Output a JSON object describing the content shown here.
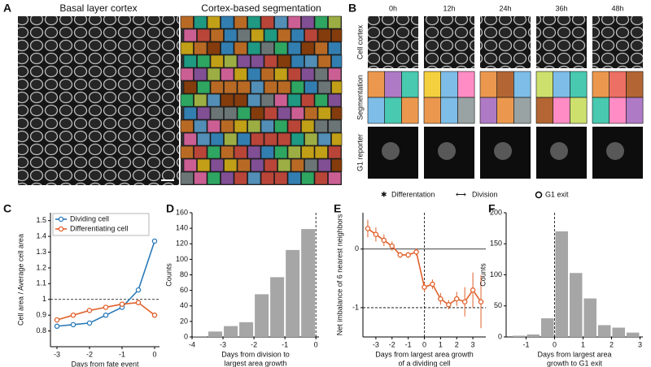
{
  "panel_labels": [
    "A",
    "B",
    "C",
    "D",
    "E",
    "F"
  ],
  "panel_a": {
    "titles": [
      "Basal layer cortex",
      "Cortex-based segmentation"
    ]
  },
  "panel_b": {
    "times": [
      "0h",
      "12h",
      "24h",
      "36h",
      "48h"
    ],
    "rows": [
      "Cell cortex",
      "Segmentation",
      "G1 reporter"
    ],
    "legend": [
      "Differentation",
      "Division",
      "G1 exit"
    ]
  },
  "chart_data": [
    {
      "type": "line",
      "legend": "upper left",
      "x": [
        -3,
        -2.5,
        -2,
        -1.5,
        -1,
        -0.5,
        0
      ],
      "series": [
        {
          "name": "Dividing cell",
          "color": "#2a7ab9",
          "values": [
            0.83,
            0.84,
            0.85,
            0.9,
            0.95,
            1.06,
            1.37
          ]
        },
        {
          "name": "Differentiating cell",
          "color": "#e0602a",
          "values": [
            0.87,
            0.9,
            0.93,
            0.95,
            0.97,
            0.98,
            0.9
          ]
        }
      ],
      "xlim": [
        -3.2,
        0.15
      ],
      "ylim": [
        0.7,
        1.55
      ],
      "xticks": [
        -3,
        -2,
        -1,
        0
      ],
      "yticks": [
        0.8,
        0.9,
        1,
        1.1,
        1.2,
        1.3,
        1.4,
        1.5
      ],
      "reference_lines": [
        {
          "axis": "y",
          "value": 1,
          "style": "dashed"
        }
      ],
      "ylabel": "Cell area / Average cell area",
      "xlabel": [
        "Days from fate event"
      ]
    },
    {
      "type": "histogram",
      "color": "#a6a6a6",
      "bins": [
        -4,
        -3.5,
        -3,
        -2.5,
        -2,
        -1.5,
        -1,
        -0.5,
        0
      ],
      "counts": [
        1,
        7,
        14,
        19,
        55,
        77,
        112,
        139
      ],
      "xlim": [
        -4,
        0.1
      ],
      "ylim": [
        0,
        160
      ],
      "xticks": [
        -4,
        -3,
        -2,
        -1,
        0
      ],
      "yticks": [
        0,
        20,
        40,
        60,
        80,
        100,
        120,
        140,
        160
      ],
      "reference_lines": [
        {
          "axis": "x",
          "value": 0,
          "style": "dashed"
        }
      ],
      "ylabel": "Counts",
      "xlabel": [
        "Days from division to",
        "largest area growth"
      ]
    },
    {
      "type": "line",
      "x": [
        -3.5,
        -3,
        -2.5,
        -2,
        -1.5,
        -1,
        -0.5,
        0,
        0.5,
        1,
        1.5,
        2,
        2.5,
        3,
        3.5
      ],
      "series": [
        {
          "color": "#e0602a",
          "values": [
            0.35,
            0.25,
            0.15,
            0.05,
            -0.1,
            -0.1,
            -0.05,
            -0.65,
            -0.6,
            -0.85,
            -0.95,
            -0.85,
            -0.9,
            -0.7,
            -0.9
          ],
          "errors": [
            0.15,
            0.12,
            0.1,
            0.08,
            0.05,
            0.05,
            0.06,
            0.08,
            0.08,
            0.1,
            0.08,
            0.12,
            0.25,
            0.3,
            0.45
          ]
        }
      ],
      "xlim": [
        -3.8,
        3.8
      ],
      "ylim": [
        -1.5,
        0.62
      ],
      "xticks": [
        -3,
        -2,
        -1,
        0,
        1,
        2,
        3
      ],
      "yticks": [
        -1,
        0
      ],
      "reference_lines": [
        {
          "axis": "y",
          "value": 0,
          "style": "solid"
        },
        {
          "axis": "y",
          "value": -1,
          "style": "dashed"
        },
        {
          "axis": "x",
          "value": 0,
          "style": "dashed"
        }
      ],
      "ylabel": "Net imbalance of 6 nearest neighbors",
      "xlabel": [
        "Days from largest area growth",
        "of a dividing cell"
      ]
    },
    {
      "type": "histogram",
      "color": "#a6a6a6",
      "bins": [
        -1.5,
        -1,
        -0.5,
        0,
        0.5,
        1,
        1.5,
        2,
        2.5,
        3
      ],
      "counts": [
        2,
        4,
        30,
        170,
        103,
        62,
        19,
        15,
        7
      ],
      "xlim": [
        -1.7,
        3.1
      ],
      "ylim": [
        0,
        200
      ],
      "xticks": [
        -1,
        0,
        1,
        2,
        3
      ],
      "yticks": [
        0,
        50,
        100,
        150,
        200
      ],
      "reference_lines": [
        {
          "axis": "x",
          "value": 0,
          "style": "dashed"
        }
      ],
      "ylabel": "Counts",
      "xlabel": [
        "Days from largest area",
        "growth to G1 exit"
      ]
    }
  ]
}
